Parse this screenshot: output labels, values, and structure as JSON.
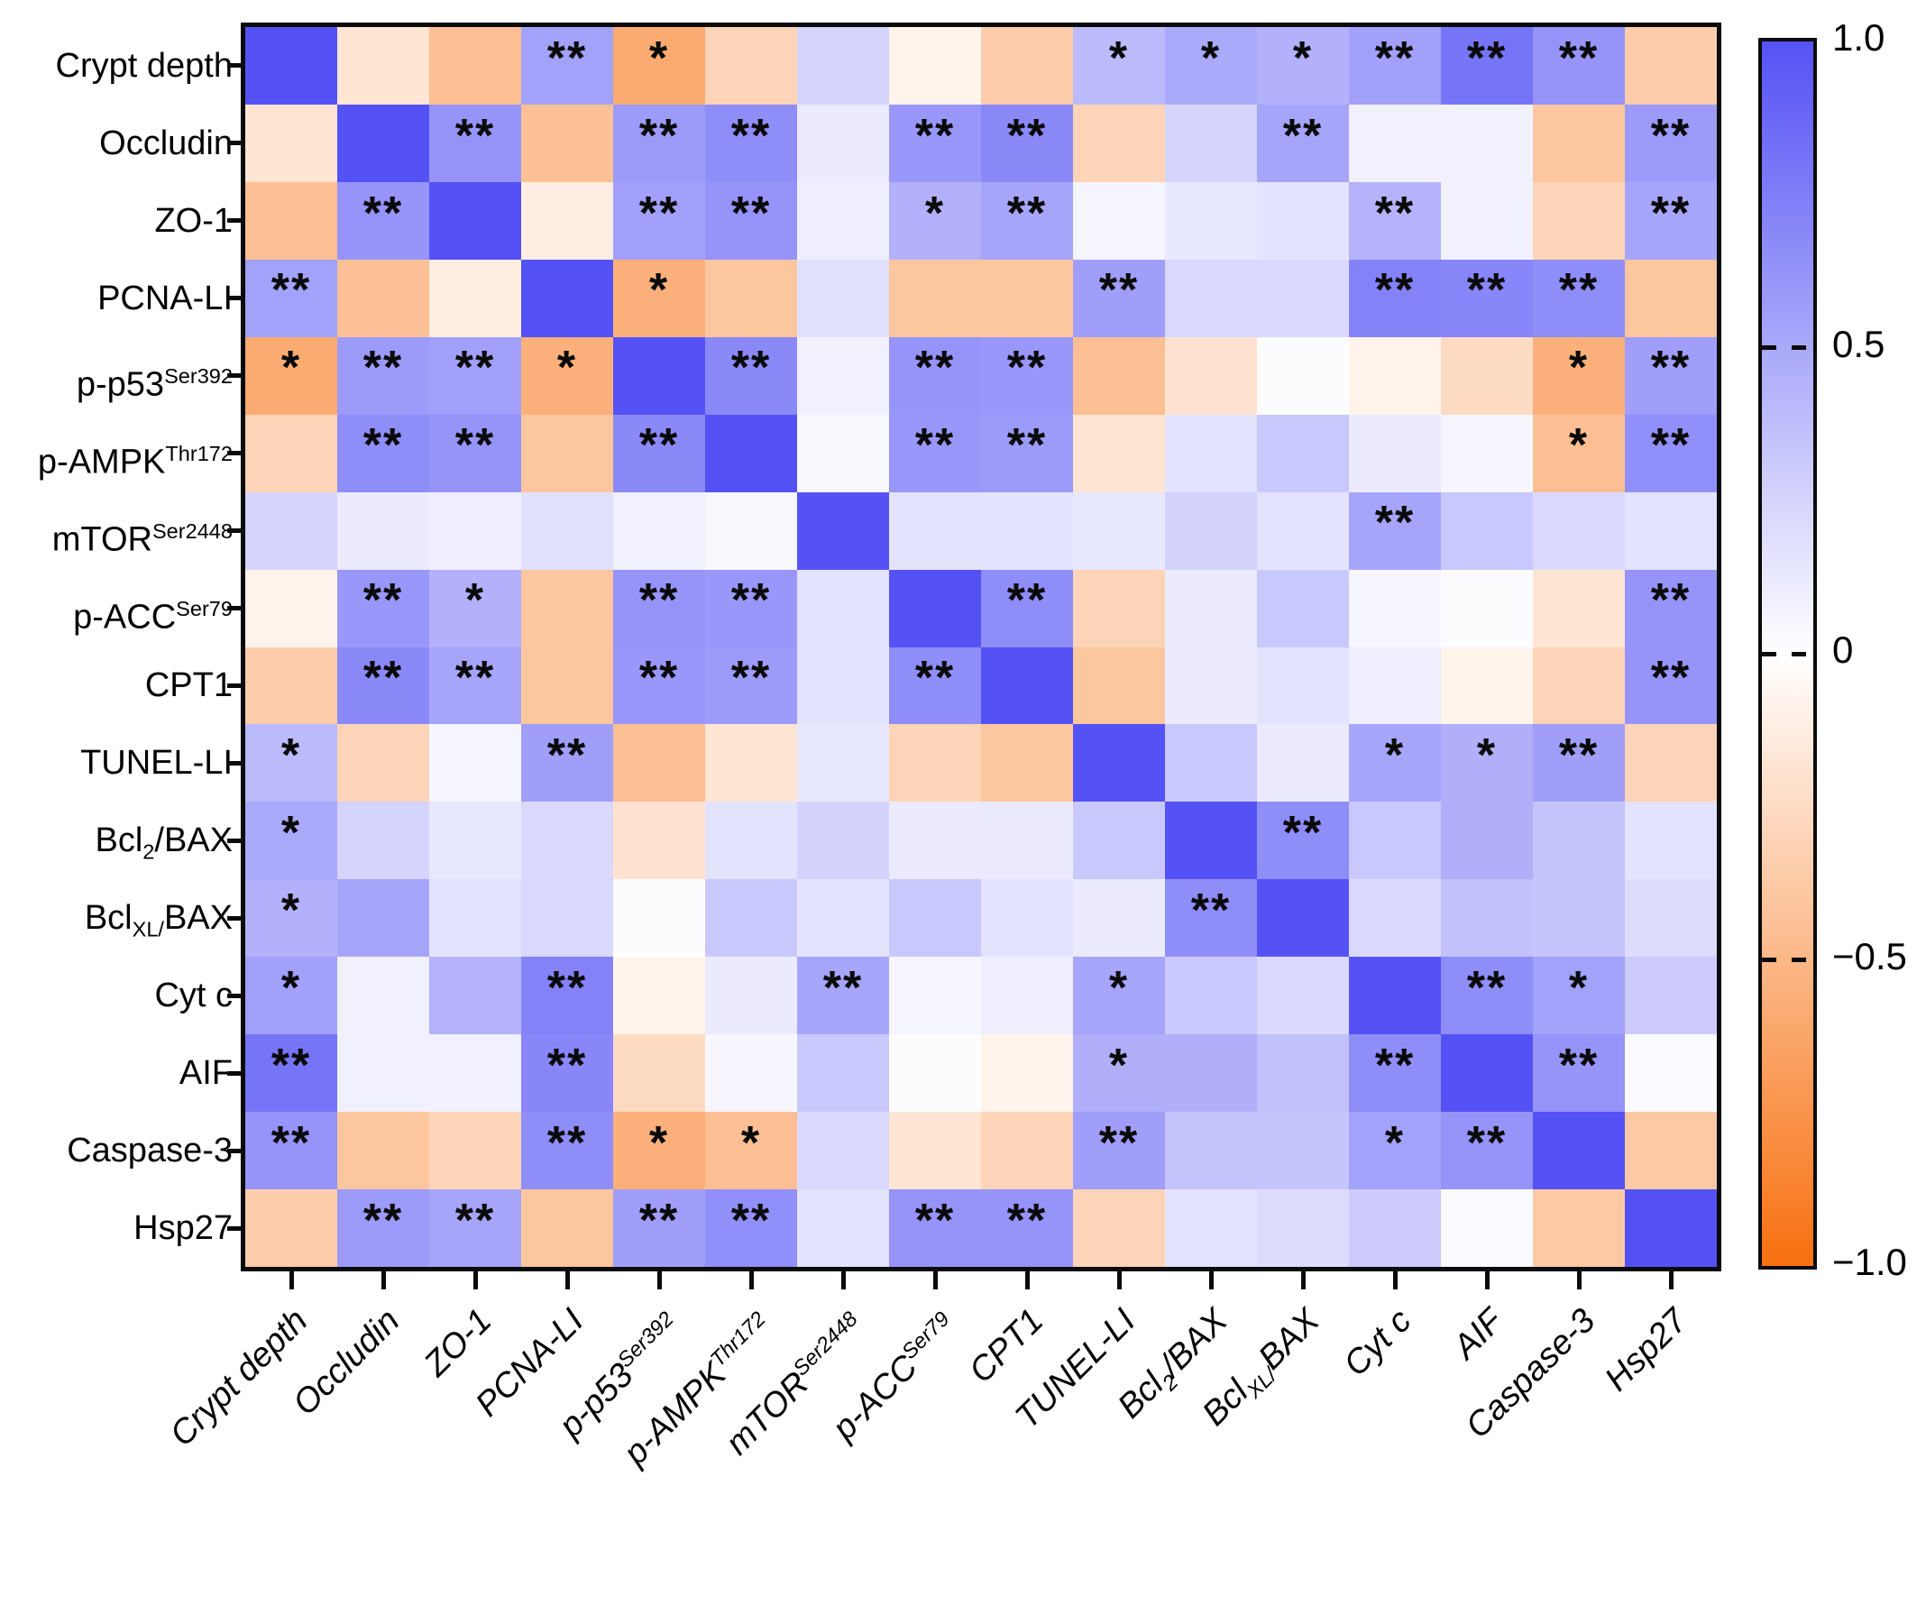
{
  "chart_data": {
    "type": "heatmap",
    "title": "",
    "description_visible_text_only": "16x16 correlation heatmap with significance asterisks",
    "variables": [
      "Crypt depth",
      "Occludin",
      "ZO-1",
      "PCNA-LI",
      "p-p53^{Ser392}",
      "p-AMPK^{Thr172}",
      "mTOR^{Ser2448}",
      "p-ACC^{Ser79}",
      "CPT1",
      "TUNEL-LI",
      "Bcl_{2}/BAX",
      "Bcl_{XL/}BAX",
      "Cyt c",
      "AIF",
      "Caspase-3",
      "Hsp27"
    ],
    "matrix": [
      [
        1.0,
        -0.18,
        -0.45,
        0.54,
        -0.59,
        -0.3,
        0.25,
        -0.08,
        -0.35,
        0.4,
        0.5,
        0.45,
        0.55,
        0.8,
        0.62,
        -0.35
      ],
      [
        -0.18,
        1.0,
        0.62,
        -0.44,
        0.58,
        0.66,
        0.12,
        0.6,
        0.68,
        -0.3,
        0.25,
        0.52,
        0.08,
        0.08,
        -0.4,
        0.58
      ],
      [
        -0.45,
        0.62,
        1.0,
        -0.12,
        0.55,
        0.62,
        0.1,
        0.45,
        0.52,
        0.06,
        0.14,
        0.16,
        0.44,
        0.08,
        -0.3,
        0.52
      ],
      [
        0.54,
        -0.44,
        -0.12,
        1.0,
        -0.55,
        -0.4,
        0.18,
        -0.4,
        -0.4,
        0.56,
        0.22,
        0.22,
        0.72,
        0.7,
        0.66,
        -0.4
      ],
      [
        -0.59,
        0.58,
        0.55,
        -0.55,
        1.0,
        0.68,
        0.08,
        0.62,
        0.6,
        -0.45,
        -0.2,
        0.02,
        -0.08,
        -0.25,
        -0.55,
        0.56
      ],
      [
        -0.3,
        0.66,
        0.62,
        -0.4,
        0.68,
        1.0,
        0.04,
        0.6,
        0.58,
        -0.18,
        0.16,
        0.32,
        0.12,
        0.05,
        -0.45,
        0.65
      ],
      [
        0.25,
        0.12,
        0.1,
        0.18,
        0.08,
        0.04,
        1.0,
        0.16,
        0.16,
        0.14,
        0.26,
        0.16,
        0.52,
        0.32,
        0.22,
        0.16
      ],
      [
        -0.08,
        0.6,
        0.45,
        -0.4,
        0.62,
        0.6,
        0.16,
        1.0,
        0.66,
        -0.3,
        0.12,
        0.32,
        0.06,
        0.02,
        -0.18,
        0.62
      ],
      [
        -0.35,
        0.68,
        0.52,
        -0.4,
        0.6,
        0.58,
        0.16,
        0.66,
        1.0,
        -0.4,
        0.12,
        0.16,
        0.1,
        -0.08,
        -0.3,
        0.62
      ],
      [
        0.4,
        -0.3,
        0.06,
        0.56,
        -0.45,
        -0.18,
        0.14,
        -0.3,
        -0.4,
        1.0,
        0.32,
        0.12,
        0.52,
        0.46,
        0.56,
        -0.3
      ],
      [
        0.5,
        0.25,
        0.14,
        0.22,
        -0.2,
        0.16,
        0.26,
        0.12,
        0.12,
        0.32,
        1.0,
        0.66,
        0.32,
        0.46,
        0.34,
        0.16
      ],
      [
        0.45,
        0.52,
        0.16,
        0.22,
        0.02,
        0.32,
        0.16,
        0.32,
        0.16,
        0.12,
        0.66,
        1.0,
        0.22,
        0.36,
        0.34,
        0.2
      ],
      [
        0.55,
        0.08,
        0.44,
        0.72,
        -0.08,
        0.12,
        0.52,
        0.06,
        0.1,
        0.52,
        0.32,
        0.22,
        1.0,
        0.66,
        0.54,
        0.3
      ],
      [
        0.8,
        0.08,
        0.08,
        0.7,
        -0.25,
        0.05,
        0.32,
        0.02,
        -0.08,
        0.46,
        0.46,
        0.36,
        0.66,
        1.0,
        0.62,
        0.03
      ],
      [
        0.62,
        -0.4,
        -0.3,
        0.66,
        -0.55,
        -0.45,
        0.22,
        -0.18,
        -0.3,
        0.56,
        0.34,
        0.34,
        0.54,
        0.62,
        1.0,
        -0.38
      ],
      [
        -0.35,
        0.58,
        0.52,
        -0.4,
        0.56,
        0.65,
        0.16,
        0.62,
        0.62,
        -0.3,
        0.16,
        0.2,
        0.3,
        0.03,
        -0.38,
        1.0
      ]
    ],
    "significance": [
      [
        "",
        "",
        "",
        "**",
        "*",
        "",
        "",
        "",
        "",
        "*",
        "*",
        "*",
        "**",
        "**",
        "**",
        ""
      ],
      [
        "",
        "",
        "**",
        "",
        "**",
        "**",
        "",
        "**",
        "**",
        "",
        "",
        "**",
        "",
        "",
        "",
        "**"
      ],
      [
        "",
        "**",
        "",
        "",
        "**",
        "**",
        "",
        "*",
        "**",
        "",
        "",
        "",
        "**",
        "",
        "",
        "**"
      ],
      [
        "**",
        "",
        "",
        "",
        "*",
        "",
        "",
        "",
        "",
        "**",
        "",
        "",
        "**",
        "**",
        "**",
        ""
      ],
      [
        "*",
        "**",
        "**",
        "*",
        "",
        "**",
        "",
        "**",
        "**",
        "",
        "",
        "",
        "",
        "",
        "*",
        "**"
      ],
      [
        "",
        "**",
        "**",
        "",
        "**",
        "",
        "",
        "**",
        "**",
        "",
        "",
        "",
        "",
        "",
        "*",
        "**"
      ],
      [
        "",
        "",
        "",
        "",
        "",
        "",
        "",
        "",
        "",
        "",
        "",
        "",
        "**",
        "",
        "",
        ""
      ],
      [
        "",
        "**",
        "*",
        "",
        "**",
        "**",
        "",
        "",
        "**",
        "",
        "",
        "",
        "",
        "",
        "",
        "**"
      ],
      [
        "",
        "**",
        "**",
        "",
        "**",
        "**",
        "",
        "**",
        "",
        "",
        "",
        "",
        "",
        "",
        "",
        "**"
      ],
      [
        "*",
        "",
        "",
        "**",
        "",
        "",
        "",
        "",
        "",
        "",
        "",
        "",
        "*",
        "*",
        "**",
        ""
      ],
      [
        "*",
        "",
        "",
        "",
        "",
        "",
        "",
        "",
        "",
        "",
        "",
        "**",
        "",
        "",
        "",
        ""
      ],
      [
        "*",
        "",
        "",
        "",
        "",
        "",
        "",
        "",
        "",
        "",
        "**",
        "",
        "",
        "",
        "",
        ""
      ],
      [
        "*",
        "",
        "",
        "**",
        "",
        "",
        "**",
        "",
        "",
        "*",
        "",
        "",
        "",
        "**",
        "*",
        ""
      ],
      [
        "**",
        "",
        "",
        "**",
        "",
        "",
        "",
        "",
        "",
        "*",
        "",
        "",
        "**",
        "",
        "**",
        ""
      ],
      [
        "**",
        "",
        "",
        "**",
        "*",
        "*",
        "",
        "",
        "",
        "**",
        "",
        "",
        "*",
        "**",
        "",
        ""
      ],
      [
        "",
        "**",
        "**",
        "",
        "**",
        "**",
        "",
        "**",
        "**",
        "",
        "",
        "",
        "",
        "",
        "",
        ""
      ]
    ],
    "significance_legend_visible": false,
    "colorbar": {
      "range": [
        -1.0,
        1.0
      ],
      "ticks": [
        {
          "label": "1.0",
          "value": 1.0
        },
        {
          "label": "0.5",
          "value": 0.5
        },
        {
          "label": "0",
          "value": 0.0
        },
        {
          "label": "−0.5",
          "value": -0.5
        },
        {
          "label": "−1.0",
          "value": -1.0
        }
      ],
      "max_color": "#5552f5",
      "zero_color": "#ffffff",
      "min_color": "#f87010"
    },
    "layout_hints": {
      "x_label_rotation_deg": -45,
      "x_label_style": "italic",
      "grid": false,
      "legend_position": "right-colorbar"
    }
  }
}
